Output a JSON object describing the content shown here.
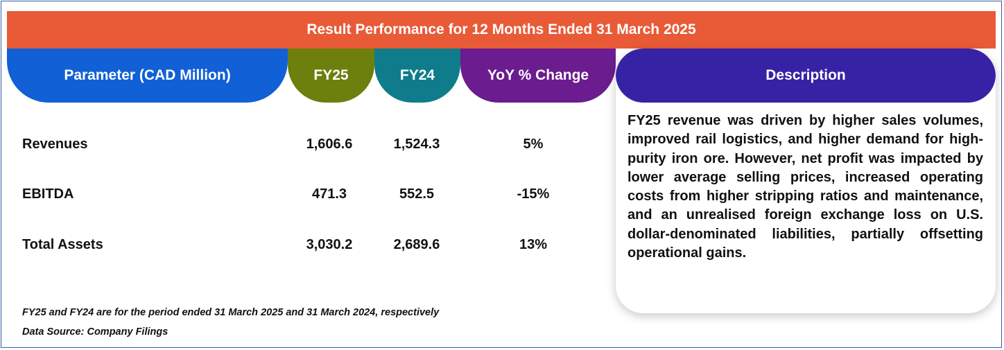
{
  "title": "Result Performance for 12 Months Ended 31 March 2025",
  "headers": {
    "parameter": "Parameter (CAD Million)",
    "fy25": "FY25",
    "fy24": "FY24",
    "yoy": "YoY % Change",
    "description": "Description"
  },
  "rows": [
    {
      "label": "Revenues",
      "fy25": "1,606.6",
      "fy24": "1,524.3",
      "yoy": "5%"
    },
    {
      "label": "EBITDA",
      "fy25": "471.3",
      "fy24": "552.5",
      "yoy": "-15%"
    },
    {
      "label": "Total Assets",
      "fy25": "3,030.2",
      "fy24": "2,689.6",
      "yoy": "13%"
    }
  ],
  "description": "FY25 revenue was driven by higher sales volumes, improved rail logistics, and higher demand for high-purity iron ore. However, net profit was impacted by lower average selling prices, increased operating costs from higher stripping ratios and maintenance, and an unrealised foreign exchange loss on U.S. dollar-denominated liabilities, partially offsetting operational gains.",
  "footnotes": {
    "period_note": "FY25 and FY24 are for the period ended 31 March 2025 and  31 March 2024, respectively",
    "source": "Data Source: Company Filings"
  },
  "colors": {
    "title_bar": "#e95a37",
    "parameter_header": "#1160d6",
    "fy25_header": "#6d7f0c",
    "fy24_header": "#0e7c8a",
    "yoy_header": "#6b1c8e",
    "description_header": "#3722a6"
  }
}
